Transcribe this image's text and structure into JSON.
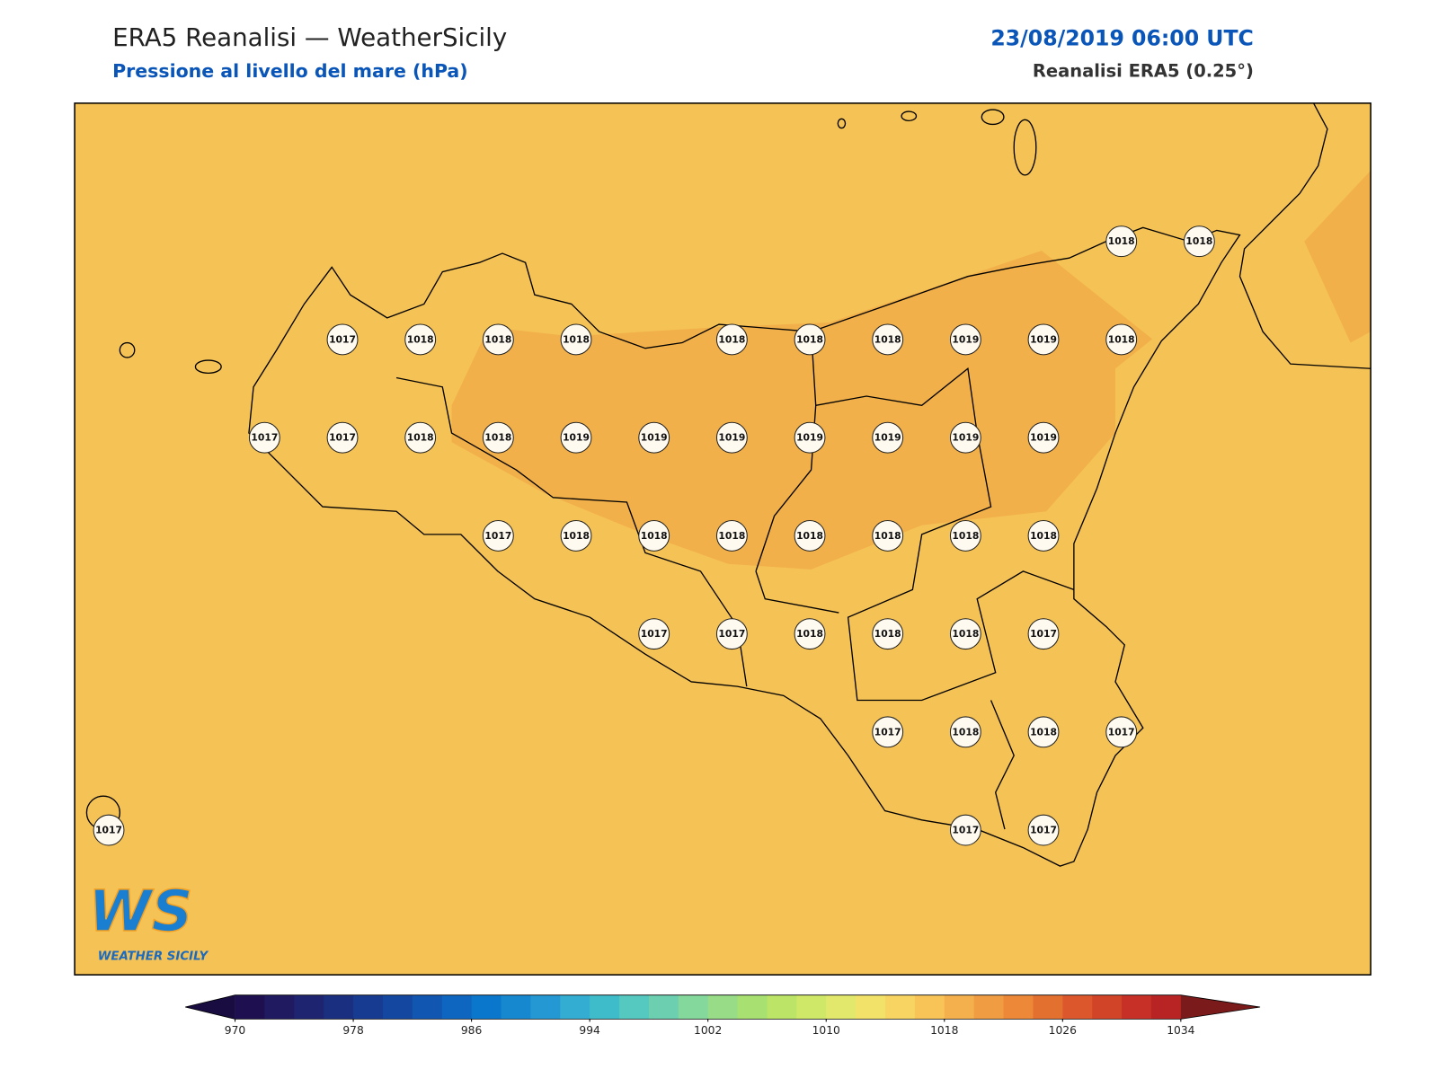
{
  "header": {
    "title": "ERA5 Reanalisi — WeatherSicily",
    "subtitle": "Pressione al livello del mare (hPa)",
    "datetime": "23/08/2019 06:00 UTC",
    "source": "Reanalisi ERA5 (0.25°)"
  },
  "map": {
    "background": "#f5c256",
    "high_zone_color": "#f2b04a"
  },
  "stations": [
    [
      null,
      null,
      null,
      null,
      null,
      null,
      null,
      null,
      null,
      null,
      null,
      null,
      null,
      1018,
      1018
    ],
    [
      null,
      null,
      null,
      1017,
      1018,
      1018,
      1018,
      null,
      1018,
      1018,
      1018,
      1019,
      1019,
      1018,
      null
    ],
    [
      null,
      null,
      1017,
      1017,
      1018,
      1018,
      1019,
      1019,
      1019,
      1019,
      1019,
      1019,
      1019,
      null,
      null
    ],
    [
      null,
      null,
      null,
      null,
      null,
      1017,
      1018,
      1018,
      1018,
      1018,
      1018,
      1018,
      1018,
      null,
      null
    ],
    [
      null,
      null,
      null,
      null,
      null,
      null,
      null,
      1017,
      1017,
      1018,
      1018,
      1018,
      1017,
      null,
      null
    ],
    [
      null,
      null,
      null,
      null,
      null,
      null,
      null,
      null,
      null,
      null,
      1017,
      1018,
      1018,
      1017,
      null
    ],
    [
      1017,
      null,
      null,
      null,
      null,
      null,
      null,
      null,
      null,
      null,
      null,
      1017,
      1017,
      null,
      null
    ]
  ],
  "colorbar": {
    "lim": [
      970,
      1034
    ],
    "ticks": [
      970,
      978,
      986,
      994,
      1002,
      1010,
      1018,
      1026,
      1034
    ],
    "colors": [
      "#1e1050",
      "#201a60",
      "#1f2470",
      "#1b2f80",
      "#173b90",
      "#1448a0",
      "#1156b0",
      "#0e66c0",
      "#0b77cc",
      "#1588d0",
      "#2398d2",
      "#33aed2",
      "#3fbcca",
      "#55c8c0",
      "#6cd0b0",
      "#85d89c",
      "#98dc88",
      "#a8e072",
      "#bce466",
      "#d0e868",
      "#e2e86c",
      "#f2e26a",
      "#f8d462",
      "#f8c458",
      "#f4b04c",
      "#f09c42",
      "#ec8838",
      "#e47030",
      "#dc582c",
      "#d24428",
      "#c63026",
      "#b82424"
    ],
    "extend_colors": [
      "#180c40",
      "#7a1a1a"
    ]
  },
  "logo": {
    "mark": "WS",
    "text": "WEATHER SICILY"
  }
}
